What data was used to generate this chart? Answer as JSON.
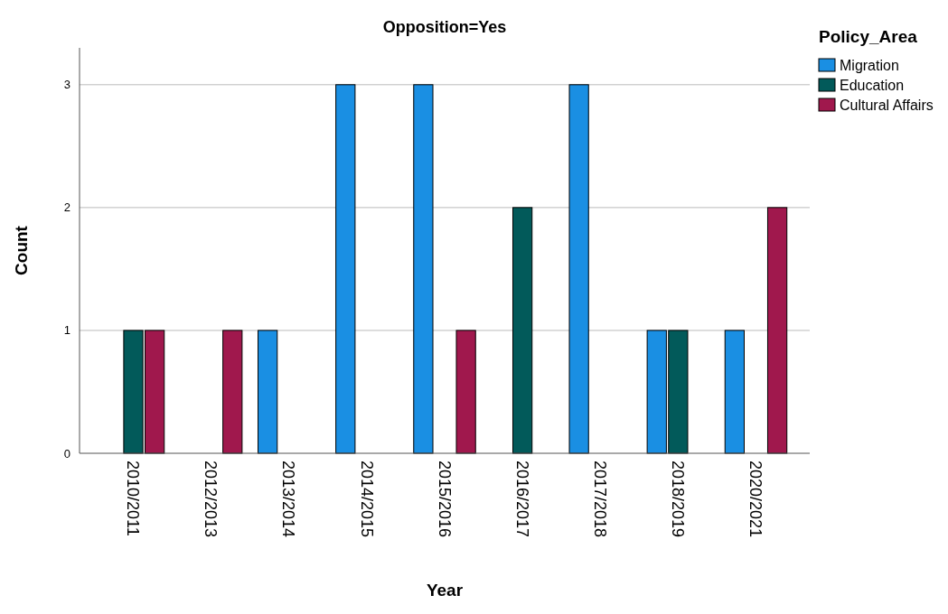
{
  "chart_data": {
    "type": "bar",
    "title": "Opposition=Yes",
    "xlabel": "Year",
    "ylabel": "Count",
    "legend_title": "Policy_Area",
    "categories": [
      "2010/2011",
      "2012/2013",
      "2013/2014",
      "2014/2015",
      "2015/2016",
      "2016/2017",
      "2017/2018",
      "2018/2019",
      "2020/2021"
    ],
    "series": [
      {
        "name": "Migration",
        "color": "#1a8fe3",
        "values": [
          null,
          null,
          1,
          3,
          3,
          null,
          3,
          1,
          1
        ]
      },
      {
        "name": "Education",
        "color": "#025a5a",
        "values": [
          1,
          null,
          null,
          null,
          null,
          2,
          null,
          1,
          null
        ]
      },
      {
        "name": "Cultural Affairs",
        "color": "#a0184d",
        "values": [
          1,
          1,
          null,
          null,
          1,
          null,
          null,
          null,
          2
        ]
      }
    ],
    "ylim": [
      0,
      3.3
    ],
    "yticks": [
      0,
      1,
      2,
      3
    ],
    "grid": "y",
    "legend": "top right"
  }
}
